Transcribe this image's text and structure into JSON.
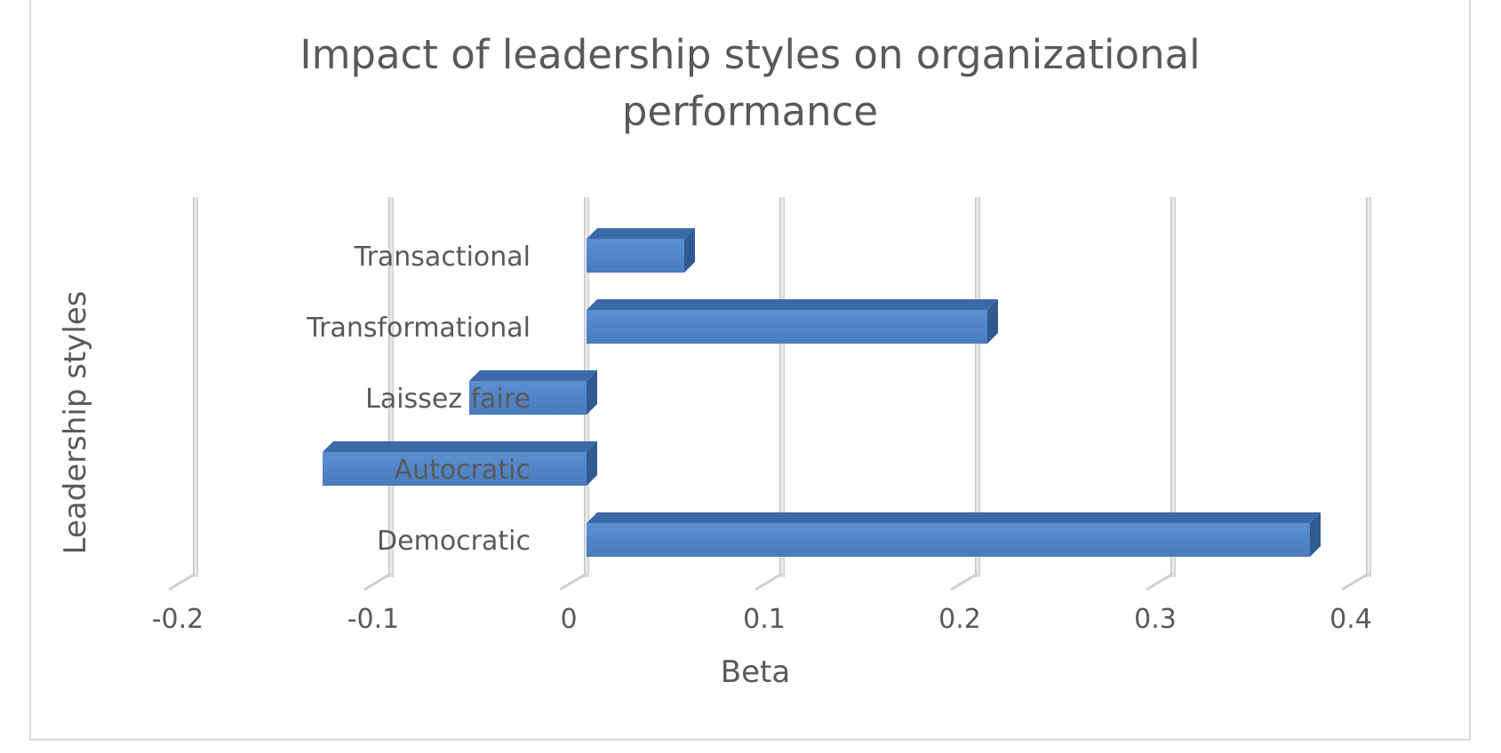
{
  "chart_data": {
    "type": "bar",
    "orientation": "horizontal",
    "title_lines": [
      "Impact of leadership styles on organizational",
      "performance"
    ],
    "xlabel": "Beta",
    "ylabel": "Leadership styles",
    "categories": [
      "Transactional",
      "Transformational",
      "Laissez faire",
      "Autocratic",
      "Democratic"
    ],
    "values": [
      0.05,
      0.205,
      -0.06,
      -0.135,
      0.37
    ],
    "xlim": [
      -0.2,
      0.4
    ],
    "xticks": [
      "-0.2",
      "-0.1",
      "0",
      "0.1",
      "0.2",
      "0.3",
      "0.4"
    ],
    "grid": true,
    "style": "3d-clustered-bar",
    "bar_color": "#4f81bd"
  }
}
